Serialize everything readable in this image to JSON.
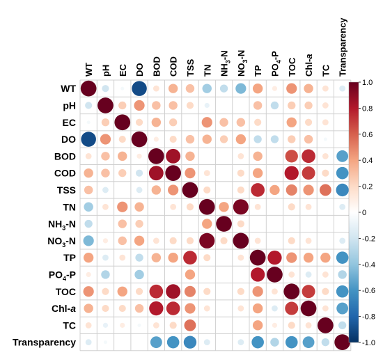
{
  "chart_data": {
    "type": "heatmap",
    "title": "",
    "xlabel": "",
    "ylabel": "",
    "variables": [
      "WT",
      "pH",
      "EC",
      "DO",
      "BOD",
      "COD",
      "TSS",
      "TN",
      "NH3-N",
      "NO3-N",
      "TP",
      "PO4-P",
      "TOC",
      "Chl-a",
      "TC",
      "Transparency"
    ],
    "labels": [
      {
        "main": "WT",
        "sub": "",
        "tail": "",
        "italic": ""
      },
      {
        "main": "pH",
        "sub": "",
        "tail": "",
        "italic": ""
      },
      {
        "main": "EC",
        "sub": "",
        "tail": "",
        "italic": ""
      },
      {
        "main": "DO",
        "sub": "",
        "tail": "",
        "italic": ""
      },
      {
        "main": "BOD",
        "sub": "",
        "tail": "",
        "italic": ""
      },
      {
        "main": "COD",
        "sub": "",
        "tail": "",
        "italic": ""
      },
      {
        "main": "TSS",
        "sub": "",
        "tail": "",
        "italic": ""
      },
      {
        "main": "TN",
        "sub": "",
        "tail": "",
        "italic": ""
      },
      {
        "main": "NH",
        "sub": "3",
        "tail": "-N",
        "italic": ""
      },
      {
        "main": "NO",
        "sub": "3",
        "tail": "-N",
        "italic": ""
      },
      {
        "main": "TP",
        "sub": "",
        "tail": "",
        "italic": ""
      },
      {
        "main": "PO",
        "sub": "4",
        "tail": "-P",
        "italic": ""
      },
      {
        "main": "TOC",
        "sub": "",
        "tail": "",
        "italic": ""
      },
      {
        "main": "Chl-",
        "sub": "",
        "tail": "",
        "italic": "a"
      },
      {
        "main": "TC",
        "sub": "",
        "tail": "",
        "italic": ""
      },
      {
        "main": "Transparency",
        "sub": "",
        "tail": "",
        "italic": ""
      }
    ],
    "matrix": [
      [
        1.0,
        -0.2,
        -0.05,
        -0.9,
        0.15,
        0.35,
        0.3,
        -0.35,
        -0.25,
        -0.45,
        0.4,
        0.1,
        0.45,
        0.35,
        0.15,
        -0.15
      ],
      [
        -0.2,
        1.0,
        0.25,
        0.45,
        0.3,
        0.3,
        0.2,
        -0.1,
        0.0,
        0.0,
        0.3,
        -0.25,
        0.25,
        0.25,
        0.15,
        0.0
      ],
      [
        -0.05,
        0.25,
        1.0,
        0.2,
        0.35,
        0.25,
        0.0,
        0.45,
        0.3,
        0.3,
        0.2,
        0.0,
        0.4,
        0.2,
        0.15,
        0.0
      ],
      [
        -0.9,
        0.45,
        0.2,
        1.0,
        0.1,
        0.2,
        0.3,
        0.35,
        0.25,
        0.4,
        -0.25,
        -0.25,
        0.25,
        0.3,
        -0.05,
        0.0
      ],
      [
        0.15,
        0.3,
        0.35,
        0.1,
        1.0,
        0.85,
        0.35,
        0.0,
        0.0,
        0.15,
        0.35,
        0.0,
        0.65,
        0.75,
        0.15,
        -0.55
      ],
      [
        0.35,
        0.3,
        0.25,
        -0.2,
        0.85,
        1.0,
        0.45,
        0.15,
        0.0,
        0.2,
        0.4,
        0.0,
        0.8,
        0.7,
        0.2,
        -0.6
      ],
      [
        0.3,
        -0.15,
        0.0,
        -0.15,
        0.35,
        0.45,
        1.0,
        0.2,
        0.0,
        0.2,
        0.75,
        0.4,
        0.5,
        0.45,
        0.55,
        -0.65
      ],
      [
        -0.35,
        0.15,
        0.45,
        0.35,
        0.0,
        0.15,
        0.2,
        1.0,
        0.4,
        0.95,
        0.15,
        0.0,
        0.2,
        0.15,
        0.0,
        -0.15
      ],
      [
        -0.25,
        0.0,
        0.3,
        0.25,
        0.0,
        0.0,
        0.0,
        0.4,
        1.0,
        0.2,
        0.0,
        0.0,
        0.0,
        0.0,
        0.0,
        0.0
      ],
      [
        -0.45,
        0.1,
        0.3,
        0.4,
        0.15,
        0.2,
        0.2,
        0.95,
        0.2,
        1.0,
        0.15,
        0.0,
        0.2,
        0.15,
        0.0,
        -0.15
      ],
      [
        0.4,
        -0.15,
        0.15,
        -0.25,
        0.35,
        0.4,
        0.75,
        0.2,
        0.0,
        0.15,
        1.0,
        0.8,
        0.45,
        0.4,
        0.4,
        -0.6
      ],
      [
        0.1,
        -0.3,
        0.0,
        -0.35,
        0.0,
        0.0,
        0.4,
        0.0,
        0.0,
        0.0,
        0.8,
        1.0,
        0.15,
        -0.15,
        0.15,
        -0.3
      ],
      [
        0.45,
        0.2,
        0.4,
        0.2,
        0.75,
        0.85,
        0.5,
        0.2,
        0.0,
        0.2,
        0.45,
        0.15,
        1.0,
        0.7,
        0.2,
        -0.6
      ],
      [
        0.35,
        0.2,
        0.2,
        0.3,
        0.8,
        0.75,
        0.45,
        0.15,
        0.0,
        0.15,
        0.4,
        -0.15,
        0.7,
        1.0,
        0.15,
        -0.55
      ],
      [
        0.15,
        -0.1,
        0.1,
        -0.05,
        0.15,
        0.2,
        0.55,
        0.0,
        0.0,
        0.0,
        0.4,
        0.1,
        0.2,
        0.15,
        1.0,
        -0.25
      ],
      [
        -0.15,
        -0.05,
        0.0,
        0.0,
        -0.55,
        -0.6,
        -0.65,
        -0.15,
        0.0,
        -0.15,
        -0.6,
        -0.3,
        -0.6,
        -0.55,
        -0.25,
        1.0
      ]
    ],
    "color_scale": {
      "range": [
        -1.0,
        1.0
      ],
      "ticks": [
        "1.0",
        "0.8",
        "0.6",
        "0.4",
        "0.2",
        "0",
        "-0.2",
        "-0.4",
        "-0.6",
        "-0.8",
        "-1.0"
      ],
      "tick_values": [
        1.0,
        0.8,
        0.6,
        0.4,
        0.2,
        0.0,
        -0.2,
        -0.4,
        -0.6,
        -0.8,
        -1.0
      ],
      "colors": [
        "#67001f",
        "#b2182b",
        "#d6604d",
        "#f4a582",
        "#fddbc7",
        "#ffffff",
        "#d1e5f0",
        "#92c5de",
        "#4393c3",
        "#2166ac",
        "#053061"
      ]
    },
    "grid": true,
    "legend": "right"
  }
}
